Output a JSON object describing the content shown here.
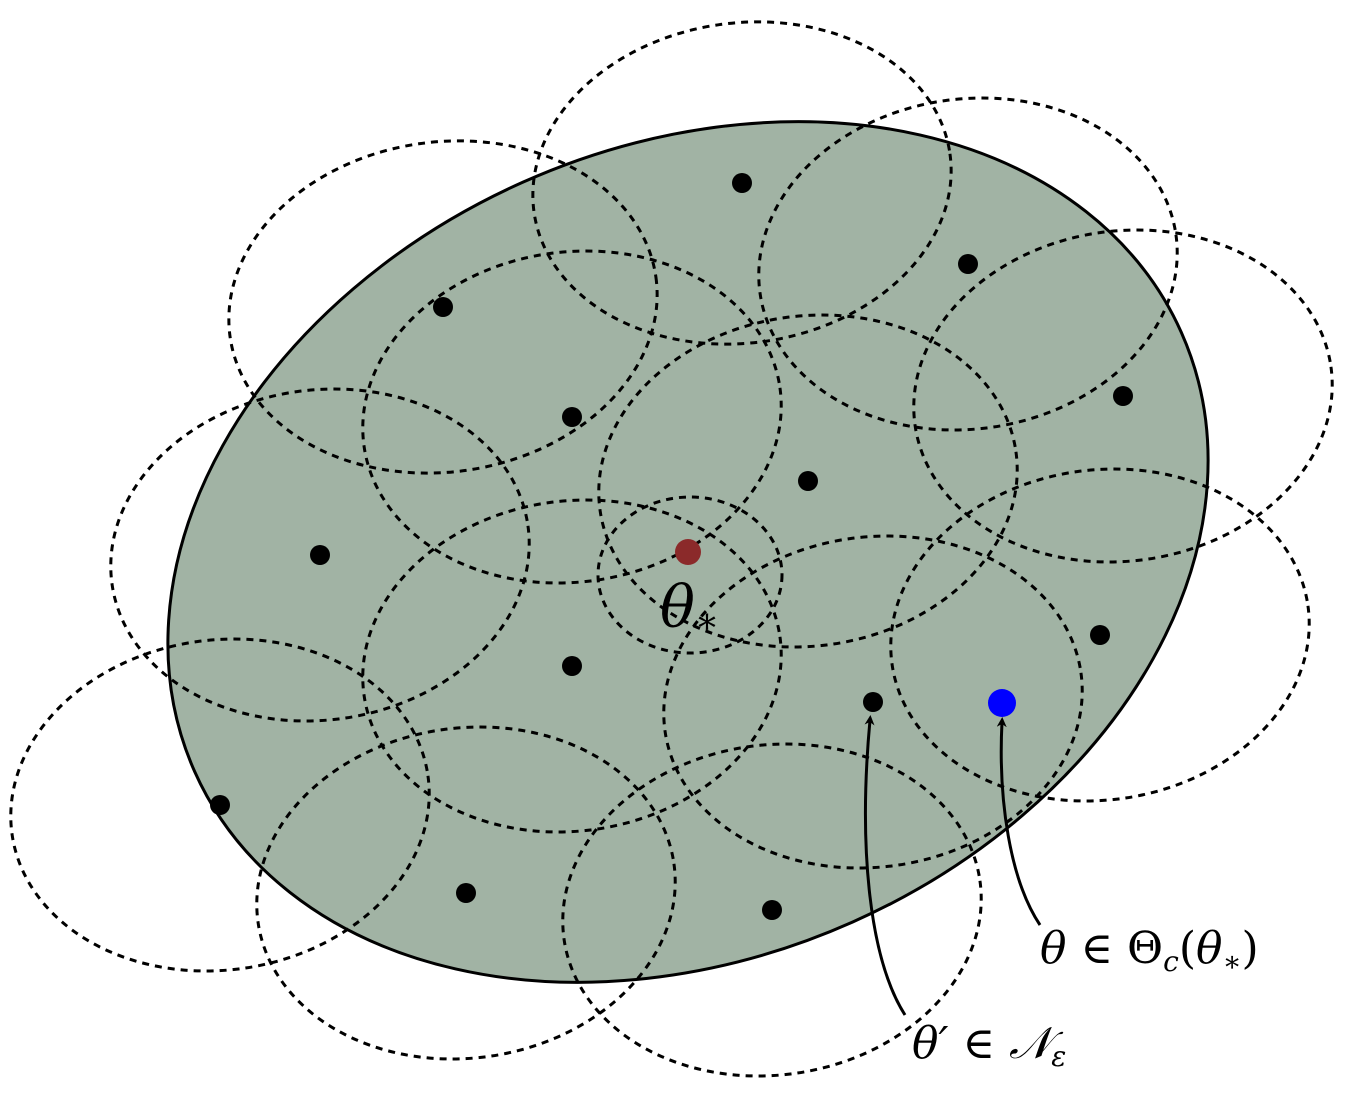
{
  "colors": {
    "region_fill": "#a1b3a4",
    "region_stroke": "#000000",
    "cover_stroke": "#000000",
    "net_point": "#000000",
    "center_point": "#8b2a2a",
    "highlight_point": "#0000ff"
  },
  "labels": {
    "center": {
      "symbol": "θ",
      "subscript": "∗"
    },
    "highlight": {
      "lhs": "θ",
      "relation": " ∈ ",
      "set": "Θ",
      "set_subscript": "c",
      "arg_open": "(",
      "arg": "θ",
      "arg_subscript": "∗",
      "arg_close": ")"
    },
    "net": {
      "lhs": "θ′",
      "relation": " ∈ ",
      "set": "𝒩",
      "set_subscript": "ε"
    }
  }
}
